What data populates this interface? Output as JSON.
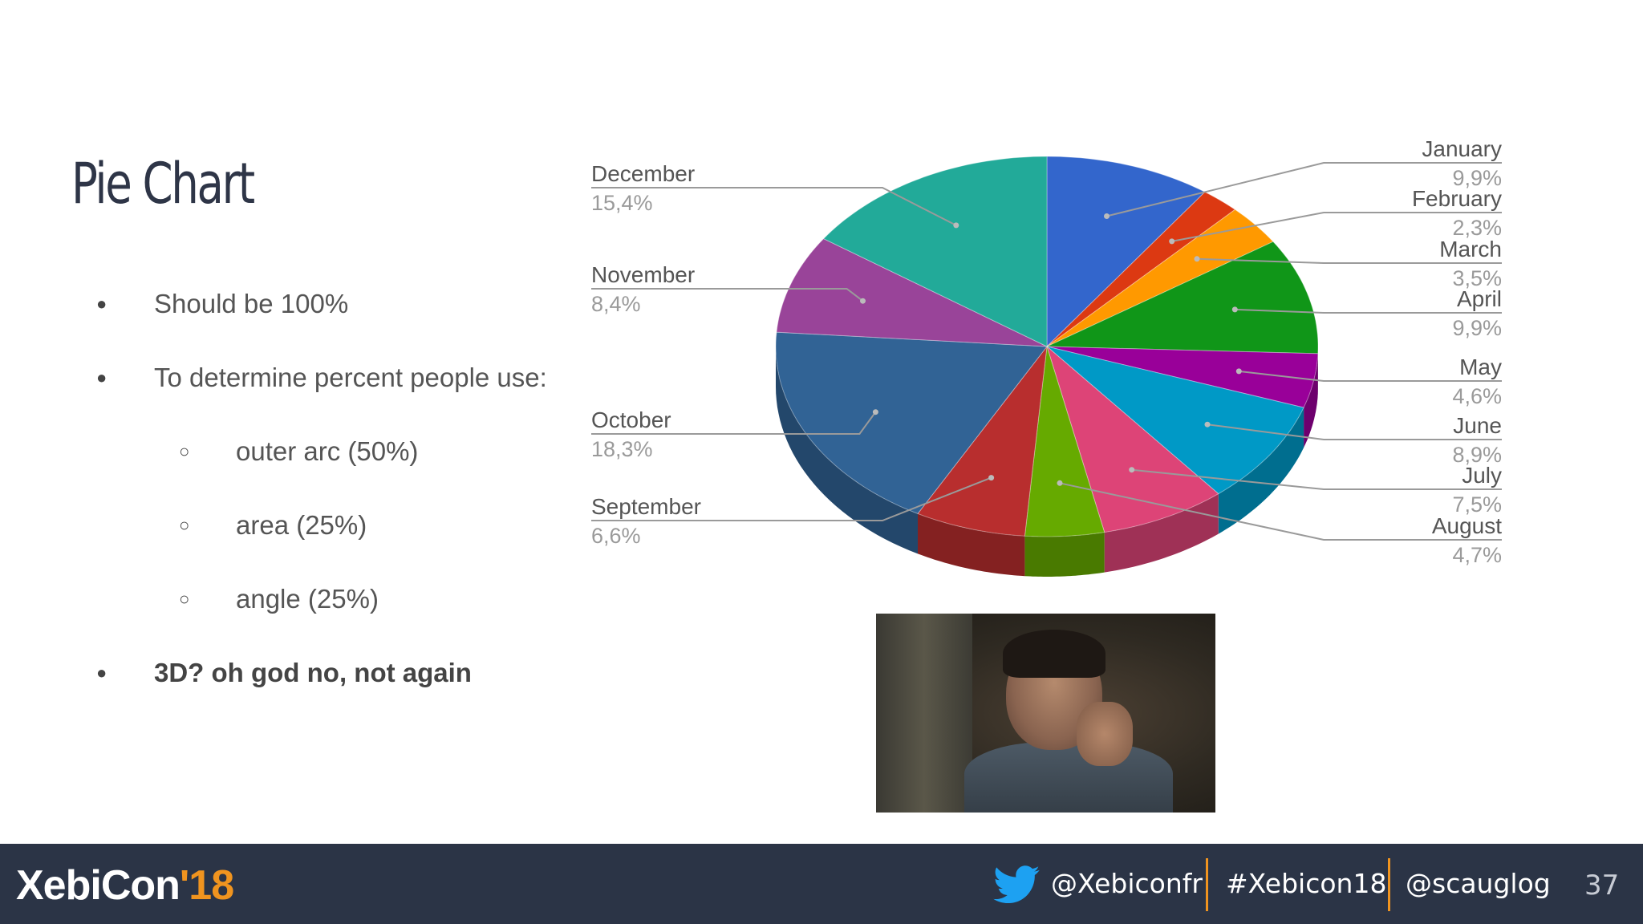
{
  "slide": {
    "title": "Pie Chart",
    "bullets": [
      {
        "text": "Should be 100%",
        "level": 1,
        "bold": false
      },
      {
        "text": "To determine percent people use:",
        "level": 1,
        "bold": false
      },
      {
        "text": "outer arc (50%)",
        "level": 2,
        "bold": false
      },
      {
        "text": "area (25%)",
        "level": 2,
        "bold": false
      },
      {
        "text": "angle (25%)",
        "level": 2,
        "bold": false
      },
      {
        "text": "3D? oh god no, not again",
        "level": 1,
        "bold": true
      }
    ],
    "bullet_glyphs": {
      "level1": "●",
      "level2": "○"
    }
  },
  "chart_data": {
    "type": "pie",
    "three_d": true,
    "legend_placement": "labels-around",
    "slices": [
      {
        "label": "January",
        "value": 9.9,
        "display": "9,9%",
        "color": "#3366cc"
      },
      {
        "label": "February",
        "value": 2.3,
        "display": "2,3%",
        "color": "#dc3912"
      },
      {
        "label": "March",
        "value": 3.5,
        "display": "3,5%",
        "color": "#ff9900"
      },
      {
        "label": "April",
        "value": 9.9,
        "display": "9,9%",
        "color": "#109618"
      },
      {
        "label": "May",
        "value": 4.6,
        "display": "4,6%",
        "color": "#990099"
      },
      {
        "label": "June",
        "value": 8.9,
        "display": "8,9%",
        "color": "#0099c6"
      },
      {
        "label": "July",
        "value": 7.5,
        "display": "7,5%",
        "color": "#dd4477"
      },
      {
        "label": "August",
        "value": 4.7,
        "display": "4,7%",
        "color": "#66aa00"
      },
      {
        "label": "September",
        "value": 6.6,
        "display": "6,6%",
        "color": "#b82e2e"
      },
      {
        "label": "October",
        "value": 18.3,
        "display": "18,3%",
        "color": "#316395"
      },
      {
        "label": "November",
        "value": 8.4,
        "display": "8,4%",
        "color": "#994499"
      },
      {
        "label": "December",
        "value": 15.4,
        "display": "15,4%",
        "color": "#22aa99"
      }
    ]
  },
  "photo": {
    "description_icon": "movie-still-image"
  },
  "footer": {
    "logo_main": "XebiCon",
    "logo_year": "'18",
    "twitter_handle": "@Xebiconfr",
    "hashtag": "#Xebicon18",
    "author_handle": "@scauglog",
    "page_number": "37",
    "accent_color": "#f0941f",
    "background_color": "#2b3446"
  }
}
